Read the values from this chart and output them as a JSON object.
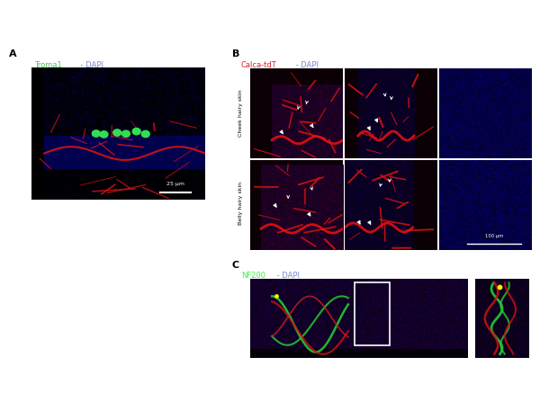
{
  "fig_width": 6.0,
  "fig_height": 4.47,
  "bg_color": "#ffffff",
  "panel_A": {
    "label": "A",
    "scale_bar": "25 μm"
  },
  "panel_B": {
    "label": "B",
    "row_labels": [
      "Cheek hairy skin",
      "Belly hairy skin"
    ],
    "scale_bar": "100 μm"
  },
  "panel_C": {
    "label": "C",
    "title_green": "NF200",
    "title_blue": " - DAPI"
  }
}
